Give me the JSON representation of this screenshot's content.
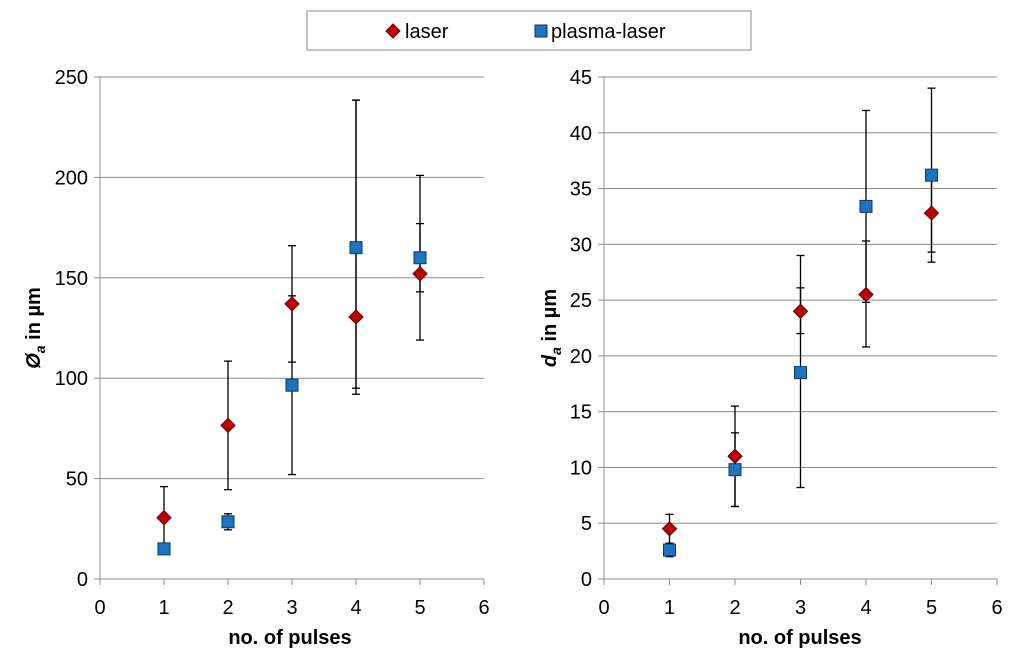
{
  "legend": {
    "items": [
      {
        "label": "laser",
        "color": "#C00000",
        "marker": "diamond"
      },
      {
        "label": "plasma-laser",
        "color": "#1E73BE",
        "marker": "square"
      }
    ]
  },
  "chart_data": [
    {
      "type": "scatter",
      "title": "",
      "xlabel": "no. of pulses",
      "ylabel_main": "Ø",
      "ylabel_sub": "a",
      "ylabel_rest": " in µm",
      "xlim": [
        0,
        6
      ],
      "ylim": [
        0,
        250
      ],
      "xticks": [
        0,
        1,
        2,
        3,
        4,
        5,
        6
      ],
      "yticks": [
        0,
        50,
        100,
        150,
        200,
        250
      ],
      "grid": true,
      "series": [
        {
          "name": "laser",
          "marker": "diamond",
          "color": "#C00000",
          "x": [
            1,
            2,
            3,
            4,
            5
          ],
          "y": [
            30.5,
            76.5,
            137,
            130.5,
            152
          ],
          "err_low": [
            17,
            44.5,
            108,
            92,
            119
          ],
          "err_high": [
            46,
            108.5,
            166,
            238.5,
            201
          ]
        },
        {
          "name": "plasma-laser",
          "marker": "square",
          "color": "#1E73BE",
          "x": [
            1,
            2,
            3,
            4,
            5
          ],
          "y": [
            15,
            28.5,
            96.5,
            165,
            160
          ],
          "err_low": [
            13,
            24.5,
            52,
            95,
            143
          ],
          "err_high": [
            17,
            32.5,
            141,
            238.5,
            177
          ]
        }
      ]
    },
    {
      "type": "scatter",
      "title": "",
      "xlabel": "no. of pulses",
      "ylabel_main": "d",
      "ylabel_sub": "a",
      "ylabel_rest": " in µm",
      "xlim": [
        0,
        6
      ],
      "ylim": [
        0,
        45
      ],
      "xticks": [
        0,
        1,
        2,
        3,
        4,
        5,
        6
      ],
      "yticks": [
        0,
        5,
        10,
        15,
        20,
        25,
        30,
        35,
        40,
        45
      ],
      "grid": true,
      "series": [
        {
          "name": "laser",
          "marker": "diamond",
          "color": "#C00000",
          "x": [
            1,
            2,
            3,
            4,
            5
          ],
          "y": [
            4.5,
            11,
            24,
            25.5,
            32.8
          ],
          "err_low": [
            3.2,
            6.5,
            22,
            20.8,
            29.3
          ],
          "err_high": [
            5.8,
            15.5,
            29,
            30.3,
            36.3
          ]
        },
        {
          "name": "plasma-laser",
          "marker": "square",
          "color": "#1E73BE",
          "x": [
            1,
            2,
            3,
            4,
            5
          ],
          "y": [
            2.6,
            9.8,
            18.5,
            33.4,
            36.2
          ],
          "err_low": [
            2,
            6.5,
            8.2,
            24.8,
            28.4
          ],
          "err_high": [
            3.2,
            13.1,
            26.1,
            42,
            44
          ]
        }
      ]
    }
  ]
}
